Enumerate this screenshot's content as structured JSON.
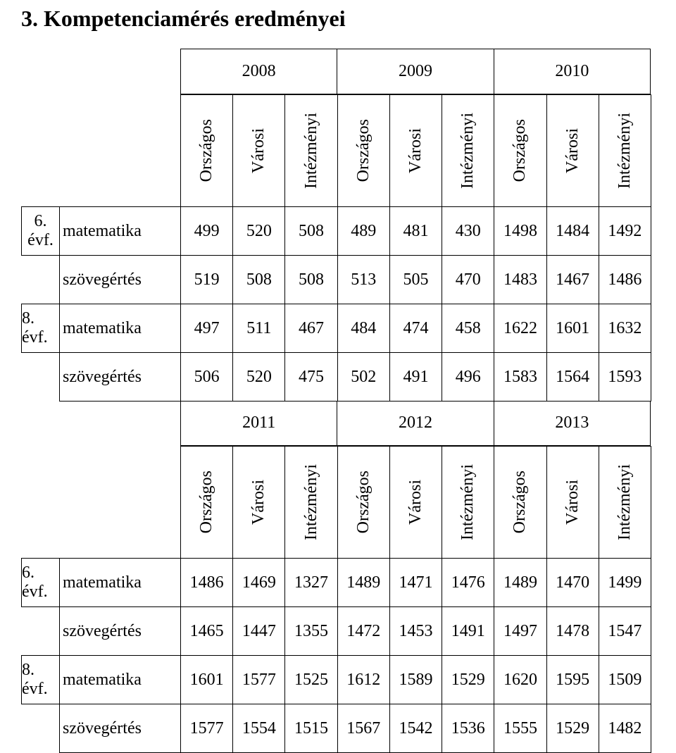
{
  "title": "3. Kompetenciamérés eredményei",
  "colors": {
    "text": "#000000",
    "background": "#ffffff",
    "border": "#000000"
  },
  "fonts": {
    "family": "Times New Roman",
    "title_size_pt": 24,
    "body_size_pt": 18
  },
  "block1": {
    "years": [
      "2008",
      "2009",
      "2010"
    ],
    "col_headers": [
      "Országos",
      "Városi",
      "Intézményi",
      "Országos",
      "Városi",
      "Intézményi",
      "Országos",
      "Városi",
      "Intézményi"
    ],
    "grade_labels": {
      "g6": "6. évf.",
      "g8": "8. évf."
    },
    "rows": [
      {
        "grade": "g6",
        "label": "matematika",
        "values": [
          499,
          520,
          508,
          489,
          481,
          430,
          1498,
          1484,
          1492
        ]
      },
      {
        "grade": "g6",
        "label": "szövegértés",
        "values": [
          519,
          508,
          508,
          513,
          505,
          470,
          1483,
          1467,
          1486
        ]
      },
      {
        "grade": "g8",
        "label": "matematika",
        "values": [
          497,
          511,
          467,
          484,
          474,
          458,
          1622,
          1601,
          1632
        ]
      },
      {
        "grade": "g8",
        "label": "szövegértés",
        "values": [
          506,
          520,
          475,
          502,
          491,
          496,
          1583,
          1564,
          1593
        ]
      }
    ]
  },
  "block2": {
    "years": [
      "2011",
      "2012",
      "2013"
    ],
    "col_headers": [
      "Országos",
      "Városi",
      "Intézményi",
      "Országos",
      "Városi",
      "Intézményi",
      "Országos",
      "Városi",
      "Intézményi"
    ],
    "grade_labels": {
      "g6": "6. évf.",
      "g8": "8. évf."
    },
    "rows": [
      {
        "grade": "g6",
        "label": "matematika",
        "values": [
          1486,
          1469,
          1327,
          1489,
          1471,
          1476,
          1489,
          1470,
          1499
        ]
      },
      {
        "grade": "g6",
        "label": "szövegértés",
        "values": [
          1465,
          1447,
          1355,
          1472,
          1453,
          1491,
          1497,
          1478,
          1547
        ]
      },
      {
        "grade": "g8",
        "label": "matematika",
        "values": [
          1601,
          1577,
          1525,
          1612,
          1589,
          1529,
          1620,
          1595,
          1509
        ]
      },
      {
        "grade": "g8",
        "label": "szövegértés",
        "values": [
          1577,
          1554,
          1515,
          1567,
          1542,
          1536,
          1555,
          1529,
          1482
        ]
      }
    ]
  }
}
